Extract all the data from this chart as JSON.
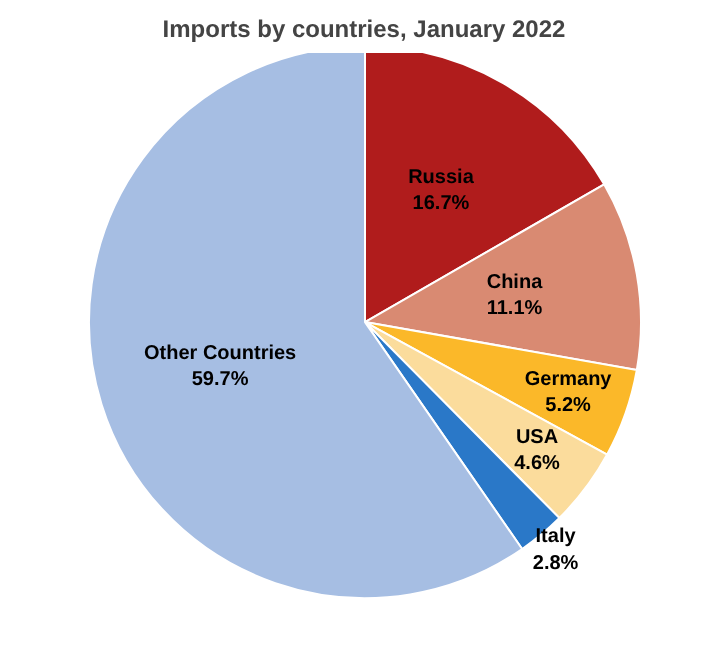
{
  "chart_data": {
    "type": "pie",
    "title": "Imports by countries, January 2022",
    "categories": [
      "Russia",
      "China",
      "Germany",
      "USA",
      "Italy",
      "Other Countries"
    ],
    "values": [
      16.7,
      11.1,
      5.2,
      4.6,
      2.8,
      59.7
    ],
    "colors": [
      "#b01c1c",
      "#d98a72",
      "#fbb829",
      "#fbdc9c",
      "#2a78c8",
      "#a6bee3"
    ],
    "value_labels": [
      "16.7%",
      "11.1%",
      "5.2%",
      "4.6%",
      "2.8%",
      "59.7%"
    ]
  }
}
